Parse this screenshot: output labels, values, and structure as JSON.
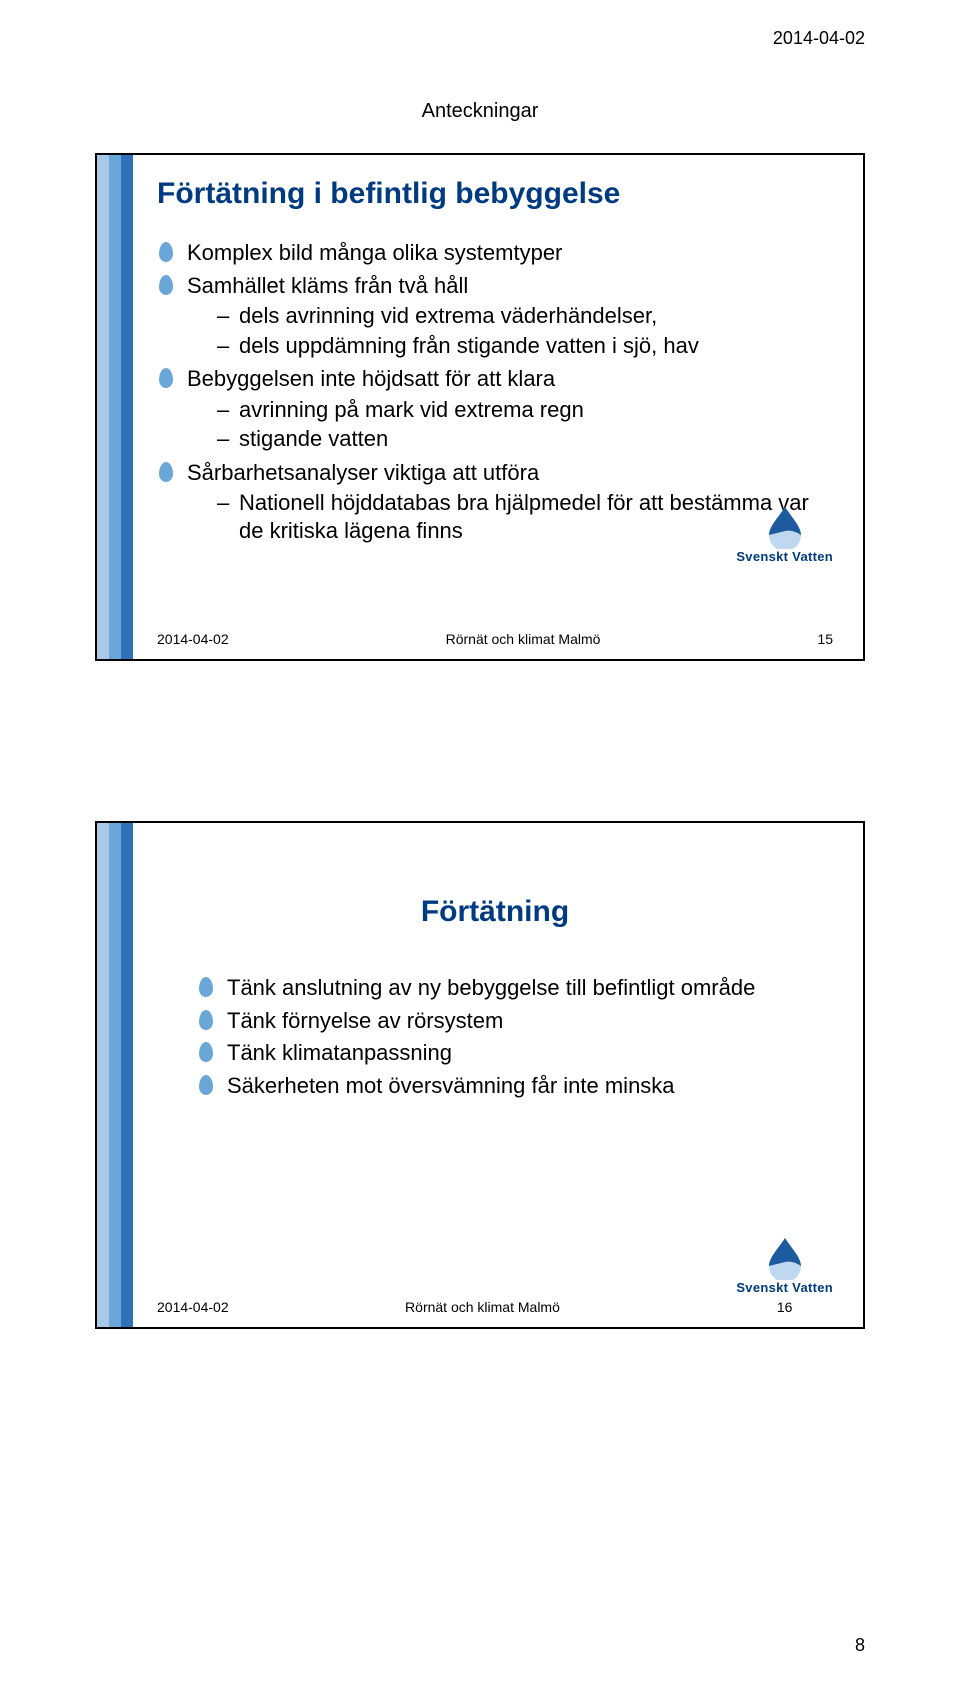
{
  "page": {
    "header_date": "2014-04-02",
    "anteckningar": "Anteckningar",
    "page_number": "8",
    "stripe_colors": [
      "#a9c8e8",
      "#6ba6d8",
      "#2f70b8"
    ],
    "bullet_color": "#6ba6d8",
    "logo": {
      "wave_top": "#1e5aa0",
      "wave_bottom": "#bfd8ef",
      "brand": "Svenskt Vatten"
    }
  },
  "slide1": {
    "title": "Förtätning i befintlig bebyggelse",
    "items": [
      {
        "text": "Komplex bild många olika systemtyper"
      },
      {
        "text": "Samhället kläms från två håll",
        "sub": [
          "dels avrinning vid extrema väderhändelser,",
          "dels uppdämning från stigande vatten i sjö, hav"
        ]
      },
      {
        "text": "Bebyggelsen inte höjdsatt för att klara",
        "sub": [
          "avrinning på mark vid extrema regn",
          "stigande vatten"
        ]
      },
      {
        "text": "Sårbarhetsanalyser viktiga att utföra",
        "sub": [
          "Nationell höjddatabas bra hjälpmedel för att bestämma var de kritiska lägena finns"
        ]
      }
    ],
    "footer": {
      "date": "2014-04-02",
      "center": "Rörnät och klimat Malmö",
      "num": "15"
    }
  },
  "slide2": {
    "title": "Förtätning",
    "items": [
      {
        "text": "Tänk anslutning av ny bebyggelse till befintligt område"
      },
      {
        "text": "Tänk förnyelse av rörsystem"
      },
      {
        "text": "Tänk klimatanpassning"
      },
      {
        "text": "Säkerheten mot översvämning får inte minska"
      }
    ],
    "footer": {
      "date": "2014-04-02",
      "center": "Rörnät och klimat Malmö",
      "num": "16"
    }
  }
}
